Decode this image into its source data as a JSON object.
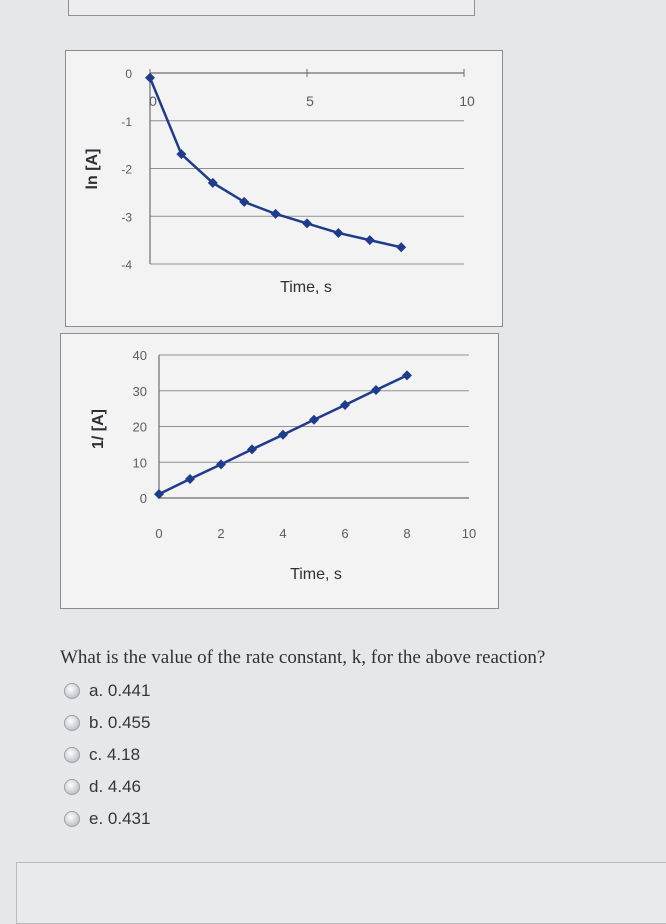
{
  "chart_data": [
    {
      "type": "line",
      "xlabel": "Time, s",
      "ylabel": "ln [A]",
      "xlim": [
        0,
        10
      ],
      "ylim": [
        -4,
        0
      ],
      "x_ticks": [
        "0",
        "5",
        "10"
      ],
      "y_ticks": [
        "0",
        "-1",
        "-2",
        "-3",
        "-4"
      ],
      "grid": true,
      "series": [
        {
          "x": [
            0,
            1,
            2,
            3,
            4,
            5,
            6,
            7,
            8
          ],
          "y": [
            -0.1,
            -1.7,
            -2.3,
            -2.7,
            -2.95,
            -3.15,
            -3.35,
            -3.5,
            -3.65
          ]
        }
      ]
    },
    {
      "type": "line",
      "xlabel": "Time, s",
      "ylabel": "1/ [A]",
      "xlim": [
        0,
        10
      ],
      "ylim": [
        0,
        40
      ],
      "x_ticks": [
        "0",
        "2",
        "4",
        "6",
        "8",
        "10"
      ],
      "y_ticks": [
        "40",
        "30",
        "20",
        "10",
        "0"
      ],
      "grid": true,
      "series": [
        {
          "x": [
            0,
            1,
            2,
            3,
            4,
            5,
            6,
            7,
            8
          ],
          "y": [
            1.1,
            5.3,
            9.4,
            13.6,
            17.7,
            21.9,
            26.0,
            30.2,
            34.3
          ]
        }
      ]
    }
  ],
  "question": {
    "text": "What is the value of the rate constant, k, for the above reaction?",
    "options": [
      {
        "label": "a. 0.441"
      },
      {
        "label": "b. 0.455"
      },
      {
        "label": "c. 4.18"
      },
      {
        "label": "d. 4.46"
      },
      {
        "label": "e. 0.431"
      }
    ]
  },
  "colors": {
    "series": "#1f3c8c",
    "grid": "#8e9094",
    "axis_text": "#5a5c60",
    "background": "#e6e7e9"
  }
}
